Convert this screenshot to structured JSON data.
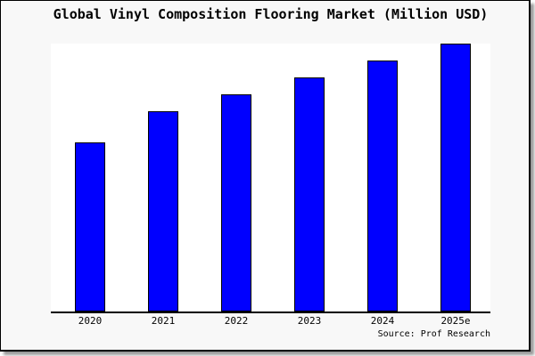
{
  "title": "Global Vinyl Composition Flooring Market (Million USD)",
  "source_note": "Source: Prof Research",
  "colors": {
    "bar_fill": "#0000ff",
    "bar_border": "#000000",
    "plot_background": "#ffffff",
    "frame_background": "#f8f8f8",
    "frame_border": "#000000",
    "shadow": "#999999",
    "axis": "#000000",
    "text": "#000000"
  },
  "chart_data": {
    "type": "bar",
    "title": "Global Vinyl Composition Flooring Market (Million USD)",
    "categories": [
      "2020",
      "2021",
      "2022",
      "2023",
      "2024",
      "2025e"
    ],
    "values_pct_of_max": [
      63.1,
      74.8,
      81.1,
      87.4,
      93.7,
      100.0
    ],
    "xlabel": "",
    "ylabel": "",
    "y_axis_tick_labels_visible": false,
    "grid": false,
    "legend_position": "none",
    "bar_color": "#0000ff",
    "source": "Source: Prof Research"
  }
}
